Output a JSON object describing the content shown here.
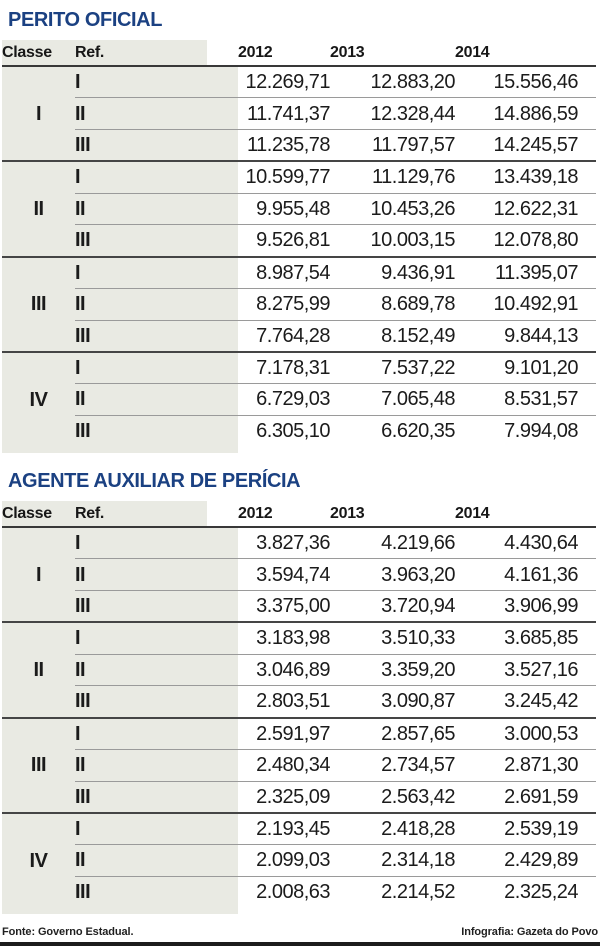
{
  "colors": {
    "accent": "#1b4182",
    "row_shade": "#e9eae3"
  },
  "footer": {
    "source": "Fonte: Governo Estadual.",
    "credit": "Infografia: Gazeta do Povo"
  },
  "chart_data": [
    {
      "type": "table",
      "title": "PERITO OFICIAL",
      "columns": [
        "Classe",
        "Ref.",
        "2012",
        "2013",
        "2014"
      ],
      "groups": [
        {
          "classe": "I",
          "rows": [
            [
              "I",
              "12.269,71",
              "12.883,20",
              "15.556,46"
            ],
            [
              "II",
              "11.741,37",
              "12.328,44",
              "14.886,59"
            ],
            [
              "III",
              "11.235,78",
              "11.797,57",
              "14.245,57"
            ]
          ]
        },
        {
          "classe": "II",
          "rows": [
            [
              "I",
              "10.599,77",
              "11.129,76",
              "13.439,18"
            ],
            [
              "II",
              "9.955,48",
              "10.453,26",
              "12.622,31"
            ],
            [
              "III",
              "9.526,81",
              "10.003,15",
              "12.078,80"
            ]
          ]
        },
        {
          "classe": "III",
          "rows": [
            [
              "I",
              "8.987,54",
              "9.436,91",
              "11.395,07"
            ],
            [
              "II",
              "8.275,99",
              "8.689,78",
              "10.492,91"
            ],
            [
              "III",
              "7.764,28",
              "8.152,49",
              "9.844,13"
            ]
          ]
        },
        {
          "classe": "IV",
          "rows": [
            [
              "I",
              "7.178,31",
              "7.537,22",
              "9.101,20"
            ],
            [
              "II",
              "6.729,03",
              "7.065,48",
              "8.531,57"
            ],
            [
              "III",
              "6.305,10",
              "6.620,35",
              "7.994,08"
            ]
          ]
        }
      ]
    },
    {
      "type": "table",
      "title": "AGENTE AUXILIAR DE PERÍCIA",
      "columns": [
        "Classe",
        "Ref.",
        "2012",
        "2013",
        "2014"
      ],
      "groups": [
        {
          "classe": "I",
          "rows": [
            [
              "I",
              "3.827,36",
              "4.219,66",
              "4.430,64"
            ],
            [
              "II",
              "3.594,74",
              "3.963,20",
              "4.161,36"
            ],
            [
              "III",
              "3.375,00",
              "3.720,94",
              "3.906,99"
            ]
          ]
        },
        {
          "classe": "II",
          "rows": [
            [
              "I",
              "3.183,98",
              "3.510,33",
              "3.685,85"
            ],
            [
              "II",
              "3.046,89",
              "3.359,20",
              "3.527,16"
            ],
            [
              "III",
              "2.803,51",
              "3.090,87",
              "3.245,42"
            ]
          ]
        },
        {
          "classe": "III",
          "rows": [
            [
              "I",
              "2.591,97",
              "2.857,65",
              "3.000,53"
            ],
            [
              "II",
              "2.480,34",
              "2.734,57",
              "2.871,30"
            ],
            [
              "III",
              "2.325,09",
              "2.563,42",
              "2.691,59"
            ]
          ]
        },
        {
          "classe": "IV",
          "rows": [
            [
              "I",
              "2.193,45",
              "2.418,28",
              "2.539,19"
            ],
            [
              "II",
              "2.099,03",
              "2.314,18",
              "2.429,89"
            ],
            [
              "III",
              "2.008,63",
              "2.214,52",
              "2.325,24"
            ]
          ]
        }
      ]
    }
  ]
}
